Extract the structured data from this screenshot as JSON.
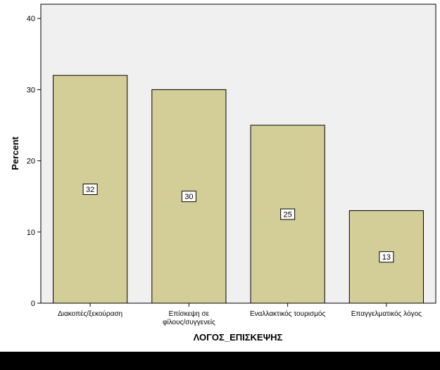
{
  "chart_data": {
    "type": "bar",
    "title": "",
    "xlabel": "ΛΟΓΟΣ_ΕΠΙΣΚΕΨΗΣ",
    "ylabel": "Percent",
    "ylim": [
      0,
      42
    ],
    "yticks": [
      "0",
      "10",
      "20",
      "30",
      "40"
    ],
    "grid": false,
    "categories": [
      [
        "Διακοπές/ξεκούραση"
      ],
      [
        "Επίσκεψη σε",
        "φίλους/συγγενείς"
      ],
      [
        "Εναλλακτικός τουρισμός"
      ],
      [
        "Επαγγελματικός λόγος"
      ]
    ],
    "values": [
      32,
      30,
      25,
      13
    ],
    "data_labels": [
      "32",
      "30",
      "25",
      "13"
    ],
    "colors": {
      "bar_fill": "#D3CE97",
      "bar_stroke": "#000000",
      "plot_background": "#F0F0F0",
      "page_background": "#FFFFFF"
    }
  }
}
